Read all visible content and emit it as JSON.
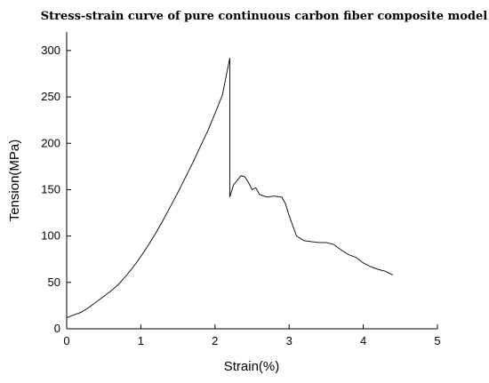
{
  "chart_data": {
    "type": "line",
    "title": "Stress-strain curve of pure continuous carbon fiber composite model",
    "xlabel": "Strain(%)",
    "ylabel": "Tension(MPa)",
    "xlim": [
      0,
      5
    ],
    "ylim": [
      0,
      320
    ],
    "xticks": [
      0,
      1,
      2,
      3,
      4,
      5
    ],
    "yticks": [
      0,
      50,
      100,
      150,
      200,
      250,
      300
    ],
    "grid": false,
    "legend": "none",
    "line_color": "#000000",
    "series": [
      {
        "x": [
          0,
          0.2,
          0.3,
          0.4,
          0.5,
          0.6,
          0.7,
          0.8,
          0.9,
          1.0,
          1.1,
          1.2,
          1.3,
          1.4,
          1.5,
          1.6,
          1.7,
          1.8,
          1.9,
          2.0,
          2.1,
          2.2,
          2.2,
          2.25,
          2.3,
          2.35,
          2.4,
          2.45,
          2.5,
          2.55,
          2.6,
          2.7,
          2.8,
          2.9,
          2.95,
          3.0,
          3.1,
          3.2,
          3.3,
          3.4,
          3.5,
          3.6,
          3.7,
          3.8,
          3.9,
          4.0,
          4.1,
          4.2,
          4.3,
          4.4
        ],
        "y": [
          12,
          18,
          23,
          29,
          35,
          41,
          48,
          57,
          67,
          78,
          90,
          103,
          117,
          132,
          147,
          163,
          179,
          196,
          213,
          232,
          252,
          292,
          142,
          155,
          160,
          165,
          164,
          158,
          150,
          152,
          145,
          142,
          143,
          142,
          135,
          122,
          100,
          95,
          94,
          93,
          93,
          91,
          85,
          80,
          77,
          71,
          67,
          64,
          62,
          58
        ]
      }
    ]
  }
}
